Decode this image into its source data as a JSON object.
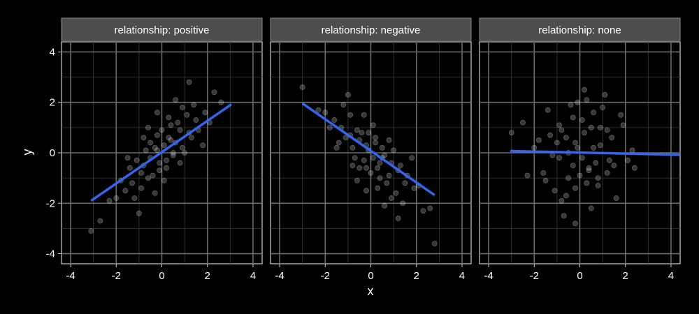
{
  "chart_data": {
    "type": "scatter",
    "layout": "facet-3-columns",
    "xlabel": "x",
    "ylabel": "y",
    "xlim": [
      -4.4,
      4.4
    ],
    "ylim": [
      -4.4,
      4.4
    ],
    "x_ticks": [
      -4,
      -2,
      0,
      2,
      4
    ],
    "y_ticks": [
      -4,
      -2,
      0,
      2,
      4
    ],
    "grid": true,
    "point_color": "#ffffff",
    "line_color": "#3366ee",
    "panels": [
      {
        "strip_label": "relationship: positive",
        "fit_line": {
          "x": [
            -3.1,
            3.05
          ],
          "y": [
            -1.9,
            1.92
          ]
        },
        "points": {
          "x": [
            -0.2,
            0.4,
            -0.9,
            0.8,
            -1.3,
            1.2,
            0.1,
            -0.5,
            0.6,
            -0.1,
            1.5,
            -1.6,
            0.3,
            -0.8,
            0.9,
            -0.3,
            1.9,
            -2.0,
            0.5,
            -0.6,
            0.0,
            1.1,
            -1.1,
            0.7,
            -0.4,
            2.3,
            -2.3,
            0.2,
            -0.7,
            1.3,
            -1.4,
            0.9,
            -0.2,
            1.6,
            -1.8,
            0.4,
            -0.9,
            1.0,
            -0.1,
            2.6,
            -3.1,
            -2.7,
            0.3,
            -0.5,
            1.4,
            -1.2,
            0.8,
            0.1,
            -0.3,
            1.8,
            -0.8,
            0.6,
            -1.5,
            2.1,
            -0.6,
            0.2,
            1.2,
            -1.0,
            0.5,
            -0.2
          ],
          "y": [
            0.1,
            0.5,
            -0.8,
            0.9,
            -1.2,
            0.8,
            0.3,
            -0.2,
            0.4,
            -0.4,
            1.3,
            -1.5,
            0.6,
            -0.5,
            0.2,
            0.2,
            1.6,
            -1.8,
            -0.1,
            -1.0,
            0.9,
            1.5,
            -0.3,
            1.2,
            -0.9,
            2.4,
            -1.9,
            -0.3,
            0.1,
            0.6,
            -0.6,
            1.8,
            0.7,
            0.9,
            -1.1,
            1.1,
            -1.4,
            0.0,
            -0.7,
            2.0,
            -3.1,
            -2.7,
            1.4,
            0.4,
            1.9,
            -1.8,
            -0.4,
            -1.1,
            -1.6,
            0.3,
            0.6,
            2.1,
            -0.2,
            1.2,
            1.0,
            -0.6,
            2.8,
            -2.4,
            0.0,
            1.6
          ]
        }
      },
      {
        "strip_label": "relationship: negative",
        "fit_line": {
          "x": [
            -3.0,
            2.8
          ],
          "y": [
            1.96,
            -1.68
          ]
        },
        "points": {
          "x": [
            -0.2,
            0.4,
            -0.9,
            0.8,
            -1.3,
            1.2,
            0.1,
            -0.5,
            0.6,
            -0.1,
            1.5,
            -1.6,
            0.3,
            -0.8,
            0.9,
            -0.3,
            1.9,
            -2.0,
            0.5,
            -0.6,
            0.0,
            1.1,
            -1.1,
            0.7,
            -0.4,
            2.3,
            -2.3,
            0.2,
            -0.7,
            1.3,
            -1.4,
            0.9,
            -0.2,
            1.6,
            -1.8,
            0.4,
            -0.9,
            1.0,
            -0.1,
            2.6,
            -3.0,
            2.8,
            0.3,
            -0.5,
            1.4,
            -1.2,
            0.8,
            0.1,
            -0.3,
            1.8,
            -0.8,
            0.6,
            -1.5,
            2.1,
            -0.6,
            0.2,
            1.2,
            -1.0,
            0.5,
            -0.2
          ],
          "y": [
            0.3,
            -0.4,
            0.7,
            -0.9,
            1.0,
            -0.7,
            -0.2,
            0.5,
            -0.1,
            0.1,
            -1.2,
            1.3,
            -0.6,
            0.2,
            -0.4,
            -0.3,
            -1.4,
            1.6,
            0.2,
            0.9,
            -0.8,
            -1.6,
            0.6,
            -1.2,
            0.8,
            -2.3,
            1.7,
            0.4,
            -0.2,
            -0.5,
            0.4,
            -1.8,
            -0.6,
            -0.9,
            1.0,
            -1.0,
            1.5,
            0.1,
            0.8,
            -2.2,
            2.6,
            -3.6,
            -1.4,
            -0.6,
            -2.0,
            1.9,
            0.5,
            1.1,
            1.5,
            -0.2,
            -0.5,
            -2.1,
            0.2,
            -1.3,
            -1.1,
            0.6,
            -2.6,
            2.3,
            -0.2,
            -1.5
          ]
        }
      },
      {
        "strip_label": "relationship: none",
        "fit_line": {
          "x": [
            -3.05,
            4.4
          ],
          "y": [
            0.07,
            -0.08
          ]
        },
        "points": {
          "x": [
            -0.2,
            0.4,
            -0.9,
            0.8,
            -1.3,
            1.2,
            0.1,
            -0.5,
            0.6,
            -0.1,
            1.5,
            -1.6,
            0.3,
            -0.8,
            0.9,
            -0.3,
            1.9,
            -2.0,
            0.5,
            -0.6,
            0.0,
            1.1,
            -1.1,
            0.7,
            -0.4,
            2.3,
            -2.3,
            0.2,
            -0.7,
            1.3,
            -1.4,
            0.9,
            -0.2,
            1.6,
            -1.8,
            0.4,
            -0.9,
            1.0,
            -0.1,
            2.4,
            -2.5,
            -3.0,
            0.3,
            -0.5,
            1.4,
            -1.2,
            0.8,
            0.1,
            -0.3,
            1.8,
            -0.8,
            0.6,
            -1.5,
            2.1,
            -0.6,
            0.2,
            1.2,
            -1.0,
            0.5,
            -0.2
          ],
          "y": [
            0.4,
            -0.6,
            1.1,
            -1.3,
            0.7,
            0.9,
            -0.2,
            -1.0,
            1.6,
            0.2,
            -0.5,
            -0.8,
            2.1,
            -1.9,
            0.3,
            1.4,
            1.1,
            0.2,
            -2.2,
            0.6,
            -0.9,
            2.3,
            -1.5,
            -0.4,
            1.9,
            0.1,
            -0.9,
            0.8,
            -2.5,
            -0.3,
            1.7,
            1.0,
            -1.4,
            -1.8,
            0.5,
            -0.7,
            -0.2,
            1.8,
            2.0,
            -0.6,
            1.2,
            0.8,
            -1.2,
            0.0,
            0.6,
            -0.1,
            -1.0,
            1.3,
            -0.5,
            1.5,
            0.9,
            0.2,
            -1.1,
            -0.3,
            -1.7,
            2.5,
            -0.8,
            0.4,
            1.0,
            -2.8
          ]
        }
      }
    ]
  }
}
